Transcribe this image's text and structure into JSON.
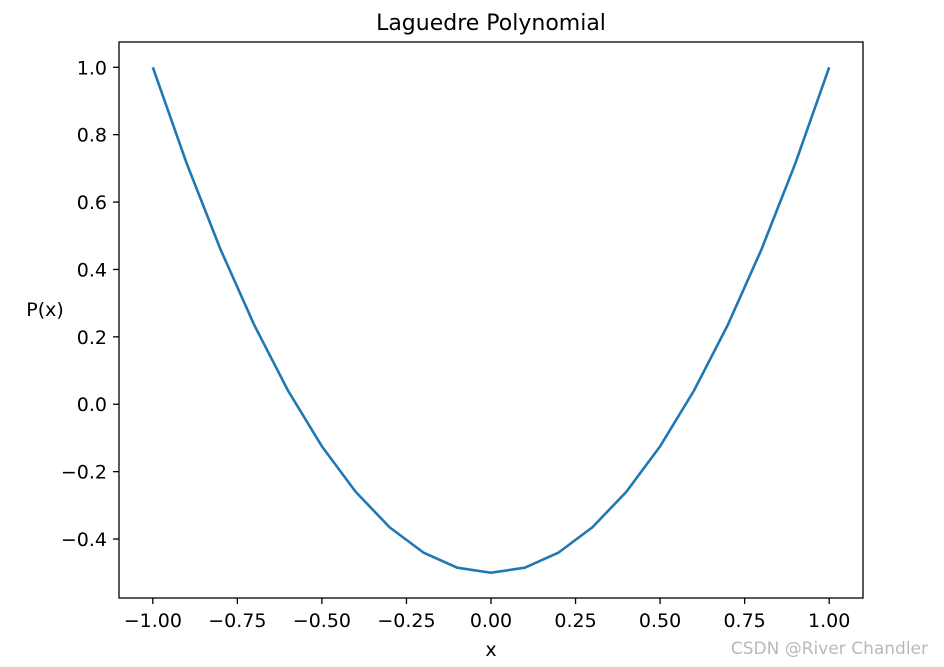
{
  "chart_data": {
    "type": "line",
    "title": "Laguedre Polynomial",
    "xlabel": "x",
    "ylabel": "P(x)",
    "xlim": [
      -1.1,
      1.1
    ],
    "ylim": [
      -0.575,
      1.075
    ],
    "xticks": [
      -1.0,
      -0.75,
      -0.5,
      -0.25,
      0.0,
      0.25,
      0.5,
      0.75,
      1.0
    ],
    "xtick_labels": [
      "−1.00",
      "−0.75",
      "−0.50",
      "−0.25",
      "0.00",
      "0.25",
      "0.50",
      "0.75",
      "1.00"
    ],
    "yticks": [
      -0.4,
      -0.2,
      0.0,
      0.2,
      0.4,
      0.6,
      0.8,
      1.0
    ],
    "ytick_labels": [
      "−0.4",
      "−0.2",
      "0.0",
      "0.2",
      "0.4",
      "0.6",
      "0.8",
      "1.0"
    ],
    "grid": false,
    "series": [
      {
        "color": "#1f77b4",
        "x": [
          -1.0,
          -0.9,
          -0.8,
          -0.7,
          -0.6,
          -0.5,
          -0.4,
          -0.3,
          -0.2,
          -0.1,
          0.0,
          0.1,
          0.2,
          0.3,
          0.4,
          0.5,
          0.6,
          0.7,
          0.8,
          0.9,
          1.0
        ],
        "y": [
          1.0,
          0.715,
          0.46,
          0.235,
          0.04,
          -0.125,
          -0.26,
          -0.365,
          -0.44,
          -0.485,
          -0.5,
          -0.485,
          -0.44,
          -0.365,
          -0.26,
          -0.125,
          0.04,
          0.235,
          0.46,
          0.715,
          1.0
        ]
      }
    ]
  },
  "watermark": "CSDN @River Chandler"
}
